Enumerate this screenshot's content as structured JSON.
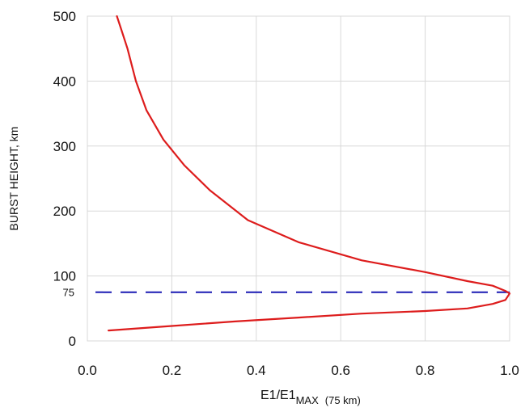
{
  "chart_data": {
    "type": "line",
    "xlabel": "E1/E1",
    "xlabel_sub": "MAX",
    "xlabel_paren": "(75 km)",
    "ylabel": "BURST HEIGHT, km",
    "xlim": [
      0,
      1.0
    ],
    "ylim": [
      0,
      500
    ],
    "x_ticks": [
      "0.0",
      "0.2",
      "0.4",
      "0.6",
      "0.8",
      "1.0"
    ],
    "x_tick_values": [
      0,
      0.2,
      0.4,
      0.6,
      0.8,
      1.0
    ],
    "y_ticks": [
      "0",
      "100",
      "200",
      "300",
      "400",
      "500"
    ],
    "y_tick_values": [
      0,
      100,
      200,
      300,
      400,
      500
    ],
    "grid": true,
    "series": [
      {
        "color": "#dd1c1c",
        "x": [
          0.05,
          0.2,
          0.35,
          0.5,
          0.65,
          0.8,
          0.9,
          0.96,
          0.99,
          1.0,
          0.99,
          0.96,
          0.9,
          0.8,
          0.65,
          0.5,
          0.38,
          0.29,
          0.23,
          0.18,
          0.14,
          0.115,
          0.095,
          0.08,
          0.07
        ],
        "y": [
          16,
          23,
          30,
          36,
          42,
          46,
          50,
          57,
          63,
          73,
          77,
          85,
          92,
          106,
          124,
          152,
          186,
          232,
          270,
          310,
          355,
          400,
          450,
          480,
          500
        ]
      }
    ],
    "reference_line": {
      "y": 75,
      "label": "75",
      "color": "#1a1ab3",
      "style": "dashed"
    }
  }
}
